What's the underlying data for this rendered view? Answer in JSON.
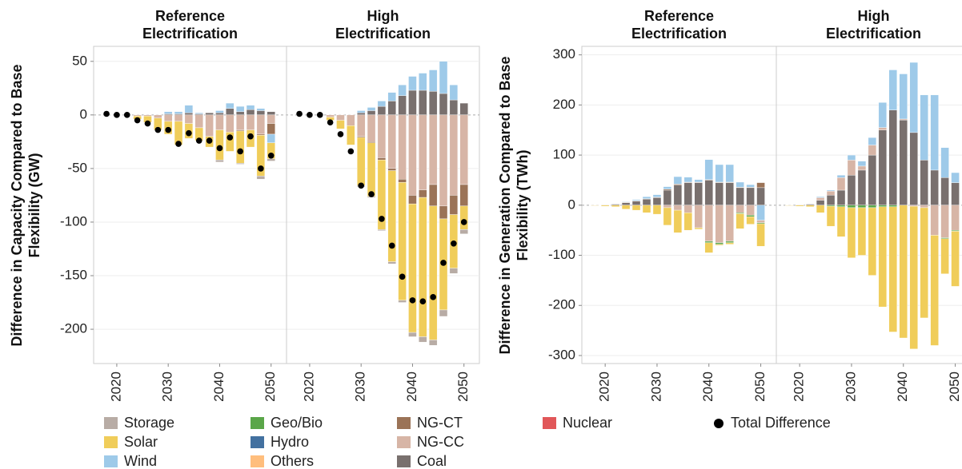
{
  "chart_data": [
    {
      "type": "bar",
      "ylabel": "Difference in Capacity Compared to Base Flexibility (GW)",
      "ylim": [
        -232,
        64
      ],
      "yticks": [
        -200,
        -150,
        -100,
        -50,
        0,
        50
      ],
      "xlim": [
        2015.5,
        2053
      ],
      "xticks": [
        2020,
        2030,
        2040,
        2050
      ],
      "x": [
        2018,
        2020,
        2022,
        2024,
        2026,
        2028,
        2030,
        2032,
        2034,
        2036,
        2038,
        2040,
        2042,
        2044,
        2046,
        2048,
        2050
      ],
      "facets": [
        {
          "title": "Reference Electrification",
          "series": [
            {
              "name": "Coal",
              "values": [
                0,
                0,
                0,
                0,
                0,
                0,
                1,
                1,
                2,
                1,
                2,
                2,
                6,
                3,
                5,
                4,
                3
              ]
            },
            {
              "name": "NG-CC",
              "values": [
                0,
                0,
                0,
                -1,
                -1,
                -3,
                -6,
                -6,
                -8,
                -12,
                -20,
                -14,
                -16,
                -14,
                -14,
                -18,
                -8
              ]
            },
            {
              "name": "NG-CT",
              "values": [
                0,
                0,
                0,
                0,
                0,
                0,
                0,
                0,
                0,
                0,
                0,
                0,
                0,
                -1,
                0,
                -1,
                -10
              ]
            },
            {
              "name": "Wind",
              "values": [
                0,
                0,
                0,
                0,
                0,
                0,
                2,
                2,
                7,
                1,
                0,
                2,
                5,
                5,
                4,
                2,
                -8
              ]
            },
            {
              "name": "Solar",
              "values": [
                0,
                0,
                0,
                -3,
                -6,
                -11,
                -12,
                -22,
                -14,
                -12,
                -10,
                -28,
                -18,
                -30,
                -16,
                -38,
                -15
              ]
            },
            {
              "name": "Storage",
              "values": [
                0,
                0,
                0,
                0,
                0,
                0,
                0,
                0,
                0,
                0,
                0,
                -2,
                0,
                -1,
                0,
                -3,
                -2
              ]
            }
          ],
          "total": [
            1,
            0,
            0,
            -5,
            -8,
            -14,
            -14,
            -27,
            -17,
            -24,
            -24,
            -31,
            -21,
            -34,
            -20,
            -50,
            -38
          ]
        },
        {
          "title": "High Electrification",
          "series": [
            {
              "name": "Coal",
              "values": [
                0,
                0,
                0,
                0,
                0,
                0,
                2,
                4,
                8,
                13,
                18,
                23,
                23,
                22,
                20,
                14,
                11
              ]
            },
            {
              "name": "Wind",
              "values": [
                0,
                0,
                0,
                0,
                0,
                0,
                2,
                3,
                5,
                8,
                10,
                13,
                16,
                20,
                30,
                14,
                0
              ]
            },
            {
              "name": "NG-CC",
              "values": [
                0,
                0,
                0,
                -2,
                -5,
                -10,
                -20,
                -25,
                -40,
                -50,
                -60,
                -75,
                -70,
                -65,
                -85,
                -75,
                -65
              ]
            },
            {
              "name": "NG-CT",
              "values": [
                0,
                0,
                0,
                0,
                0,
                0,
                -1,
                -1,
                -2,
                -2,
                -3,
                -8,
                -7,
                -20,
                -12,
                -18,
                -20
              ]
            },
            {
              "name": "Solar",
              "values": [
                0,
                0,
                0,
                -3,
                -8,
                -18,
                -45,
                -50,
                -65,
                -85,
                -110,
                -120,
                -130,
                -125,
                -85,
                -50,
                -22
              ]
            },
            {
              "name": "Storage",
              "values": [
                0,
                0,
                0,
                0,
                0,
                0,
                -1,
                -1,
                -1,
                -2,
                -2,
                -4,
                -5,
                -5,
                -6,
                -5,
                -4
              ]
            }
          ],
          "total": [
            1,
            0,
            0,
            -7,
            -18,
            -34,
            -66,
            -74,
            -97,
            -122,
            -151,
            -173,
            -174,
            -170,
            -138,
            -120,
            -100
          ]
        }
      ]
    },
    {
      "type": "bar",
      "ylabel": "Difference in Generation Compared to Base Flexibility (TWh)",
      "ylim": [
        -316,
        317
      ],
      "yticks": [
        -300,
        -200,
        -100,
        0,
        100,
        200,
        300
      ],
      "xlim": [
        2015.5,
        2053
      ],
      "xticks": [
        2020,
        2030,
        2040,
        2050
      ],
      "x": [
        2018,
        2020,
        2022,
        2024,
        2026,
        2028,
        2030,
        2032,
        2034,
        2036,
        2038,
        2040,
        2042,
        2044,
        2046,
        2048,
        2050
      ],
      "facets": [
        {
          "title": "Reference Electrification",
          "series": [
            {
              "name": "Coal",
              "values": [
                0,
                1,
                2,
                5,
                8,
                12,
                15,
                30,
                40,
                45,
                45,
                50,
                45,
                45,
                35,
                35,
                35
              ]
            },
            {
              "name": "NG-CT",
              "values": [
                0,
                0,
                0,
                1,
                1,
                1,
                1,
                2,
                2,
                1,
                1,
                1,
                1,
                1,
                1,
                1,
                10
              ]
            },
            {
              "name": "Wind",
              "values": [
                0,
                0,
                0,
                1,
                2,
                4,
                5,
                5,
                15,
                10,
                5,
                40,
                35,
                35,
                10,
                5,
                -30
              ]
            },
            {
              "name": "NG-CC",
              "values": [
                0,
                0,
                0,
                0,
                0,
                0,
                0,
                -5,
                -10,
                -15,
                -45,
                -72,
                -75,
                -72,
                -15,
                -20,
                -5
              ]
            },
            {
              "name": "Geo/Bio",
              "values": [
                0,
                0,
                0,
                0,
                0,
                0,
                0,
                0,
                0,
                0,
                0,
                -3,
                -3,
                -3,
                -2,
                -3,
                -2
              ]
            },
            {
              "name": "Solar",
              "values": [
                -1,
                -2,
                -3,
                -8,
                -10,
                -15,
                -18,
                -35,
                -45,
                -35,
                -3,
                -20,
                -2,
                -3,
                -30,
                -15,
                -45
              ]
            }
          ]
        },
        {
          "title": "High Electrification",
          "series": [
            {
              "name": "Coal",
              "values": [
                0,
                1,
                2,
                10,
                20,
                30,
                60,
                70,
                100,
                150,
                190,
                170,
                145,
                90,
                70,
                55,
                45
              ]
            },
            {
              "name": "NG-CC",
              "values": [
                0,
                0,
                0,
                5,
                8,
                25,
                30,
                8,
                20,
                5,
                0,
                2,
                -2,
                -5,
                -60,
                -65,
                -50
              ]
            },
            {
              "name": "Wind",
              "values": [
                0,
                0,
                0,
                2,
                2,
                5,
                10,
                10,
                15,
                50,
                80,
                90,
                140,
                130,
                150,
                60,
                20
              ]
            },
            {
              "name": "Geo/Bio",
              "values": [
                0,
                0,
                0,
                0,
                -2,
                -3,
                -5,
                -5,
                -5,
                -3,
                -3,
                0,
                0,
                0,
                0,
                -2,
                -2
              ]
            },
            {
              "name": "Solar",
              "values": [
                -1,
                -2,
                -3,
                -15,
                -40,
                -60,
                -100,
                -95,
                -135,
                -200,
                -250,
                -265,
                -285,
                -220,
                -220,
                -70,
                -110
              ]
            }
          ]
        }
      ]
    }
  ],
  "legend": {
    "series": [
      {
        "name": "Storage",
        "color": "#b8aca5"
      },
      {
        "name": "Solar",
        "color": "#f0cd5a"
      },
      {
        "name": "Wind",
        "color": "#9ecae9"
      },
      {
        "name": "Geo/Bio",
        "color": "#5aa649"
      },
      {
        "name": "Hydro",
        "color": "#4371a0"
      },
      {
        "name": "Others",
        "color": "#ffbe7d"
      },
      {
        "name": "NG-CT",
        "color": "#9b7357"
      },
      {
        "name": "NG-CC",
        "color": "#d7b5a6"
      },
      {
        "name": "Coal",
        "color": "#79706e"
      },
      {
        "name": "Nuclear",
        "color": "#e15759"
      }
    ],
    "total": {
      "name": "Total Difference",
      "color": "#000000"
    }
  }
}
